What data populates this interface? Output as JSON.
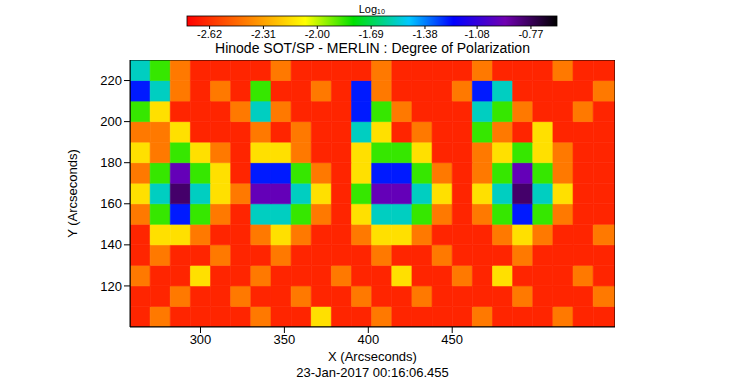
{
  "chart_data": {
    "type": "heatmap",
    "title": "Hinode SOT/SP - MERLIN : Degree of Polarization",
    "x_label": "X (Arcseconds)",
    "y_label": "Y (Arcseconds)",
    "annotation": "23-Jan-2017 00:16:06.455",
    "xlim": [
      258,
      547
    ],
    "ylim": [
      100,
      230
    ],
    "xticks": [
      300,
      350,
      400,
      450
    ],
    "yticks": [
      120,
      140,
      160,
      180,
      200,
      220
    ],
    "heatmap": {
      "x_edges": [
        258,
        270,
        282,
        294,
        306,
        318,
        330,
        342,
        354,
        366,
        378,
        390,
        402,
        414,
        426,
        438,
        450,
        462,
        474,
        486,
        498,
        510,
        522,
        534,
        547
      ],
      "y_edges": [
        100,
        110,
        120,
        130,
        140,
        150,
        160,
        170,
        180,
        190,
        200,
        210,
        220,
        230
      ],
      "z": [
        [
          -2.65,
          -2.42,
          -2.65,
          -2.65,
          -2.65,
          -2.65,
          -2.42,
          -2.65,
          -2.65,
          -2.15,
          -2.65,
          -2.65,
          -2.42,
          -2.65,
          -2.65,
          -2.65,
          -2.65,
          -2.42,
          -2.65,
          -2.65,
          -2.65,
          -2.42,
          -2.65,
          -2.65
        ],
        [
          -2.65,
          -2.65,
          -2.42,
          -2.65,
          -2.65,
          -2.42,
          -2.65,
          -2.65,
          -2.42,
          -2.65,
          -2.65,
          -2.42,
          -2.65,
          -2.65,
          -2.42,
          -2.65,
          -2.65,
          -2.65,
          -2.65,
          -2.42,
          -2.65,
          -2.65,
          -2.65,
          -2.42
        ],
        [
          -2.42,
          -2.65,
          -2.65,
          -2.15,
          -2.65,
          -2.65,
          -2.42,
          -2.65,
          -2.65,
          -2.65,
          -2.42,
          -2.65,
          -2.65,
          -2.15,
          -2.65,
          -2.65,
          -2.42,
          -2.65,
          -2.15,
          -2.65,
          -2.65,
          -2.65,
          -2.42,
          -2.65
        ],
        [
          -2.65,
          -2.42,
          -2.65,
          -2.65,
          -2.42,
          -2.65,
          -2.65,
          -2.42,
          -2.65,
          -2.65,
          -2.65,
          -2.65,
          -2.42,
          -2.65,
          -2.65,
          -2.42,
          -2.65,
          -2.65,
          -2.65,
          -2.42,
          -2.65,
          -2.65,
          -2.65,
          -2.65
        ],
        [
          -2.65,
          -2.15,
          -2.15,
          -2.42,
          -2.65,
          -2.65,
          -2.42,
          -2.15,
          -2.42,
          -2.65,
          -2.65,
          -2.42,
          -2.15,
          -2.15,
          -2.42,
          -2.65,
          -2.65,
          -2.65,
          -2.42,
          -2.15,
          -2.42,
          -2.65,
          -2.65,
          -2.42
        ],
        [
          -2.42,
          -1.85,
          -1.25,
          -1.85,
          -2.42,
          -2.65,
          -1.55,
          -1.55,
          -1.85,
          -2.42,
          -2.65,
          -2.15,
          -1.55,
          -1.55,
          -1.85,
          -2.42,
          -2.65,
          -2.42,
          -1.85,
          -1.25,
          -1.85,
          -2.42,
          -2.65,
          -2.65
        ],
        [
          -2.15,
          -1.55,
          -0.8,
          -1.55,
          -2.15,
          -2.42,
          -0.95,
          -0.95,
          -1.55,
          -2.15,
          -2.65,
          -1.85,
          -0.95,
          -0.95,
          -1.55,
          -2.15,
          -2.65,
          -2.15,
          -1.55,
          -0.8,
          -1.55,
          -2.15,
          -2.65,
          -2.65
        ],
        [
          -2.42,
          -1.85,
          -0.95,
          -1.85,
          -2.15,
          -2.65,
          -1.25,
          -1.25,
          -1.85,
          -2.42,
          -2.65,
          -2.15,
          -1.25,
          -1.25,
          -1.85,
          -2.42,
          -2.65,
          -2.42,
          -1.85,
          -0.95,
          -1.85,
          -2.42,
          -2.65,
          -2.65
        ],
        [
          -2.15,
          -2.42,
          -1.85,
          -2.15,
          -2.42,
          -2.65,
          -2.15,
          -2.15,
          -2.42,
          -2.65,
          -2.65,
          -2.15,
          -1.85,
          -1.85,
          -2.15,
          -2.65,
          -2.65,
          -2.42,
          -2.15,
          -1.85,
          -2.15,
          -2.42,
          -2.65,
          -2.65
        ],
        [
          -2.42,
          -2.42,
          -2.15,
          -2.65,
          -2.65,
          -2.65,
          -2.42,
          -2.65,
          -2.42,
          -2.65,
          -2.65,
          -1.55,
          -2.15,
          -2.65,
          -2.42,
          -2.65,
          -2.65,
          -1.85,
          -2.42,
          -2.65,
          -2.15,
          -2.65,
          -2.65,
          -2.65
        ],
        [
          -1.85,
          -2.15,
          -2.65,
          -2.65,
          -2.65,
          -2.42,
          -1.55,
          -2.42,
          -2.65,
          -2.65,
          -2.65,
          -1.25,
          -1.85,
          -2.42,
          -2.65,
          -2.65,
          -2.65,
          -1.55,
          -1.85,
          -2.42,
          -2.65,
          -2.65,
          -2.42,
          -2.65
        ],
        [
          -1.25,
          -1.55,
          -2.42,
          -2.65,
          -2.42,
          -2.65,
          -1.85,
          -2.65,
          -2.65,
          -2.42,
          -2.65,
          -1.25,
          -2.42,
          -2.65,
          -2.65,
          -2.65,
          -2.42,
          -1.25,
          -1.55,
          -2.65,
          -2.65,
          -2.65,
          -2.65,
          -2.42
        ],
        [
          -1.55,
          -1.85,
          -2.42,
          -2.65,
          -2.65,
          -2.65,
          -2.65,
          -2.42,
          -2.65,
          -2.65,
          -2.65,
          -2.65,
          -2.42,
          -2.65,
          -2.65,
          -2.65,
          -2.65,
          -2.42,
          -2.65,
          -2.65,
          -2.65,
          -2.42,
          -2.65,
          -2.65
        ]
      ]
    },
    "colorbar": {
      "label": "Log₁₀",
      "range": [
        -2.75,
        -0.62
      ],
      "ticks": [
        -2.62,
        -2.31,
        {
          "value": -2,
          "label": "-2.00"
        },
        -1.69,
        -1.38,
        -1.08,
        -0.77
      ]
    }
  }
}
